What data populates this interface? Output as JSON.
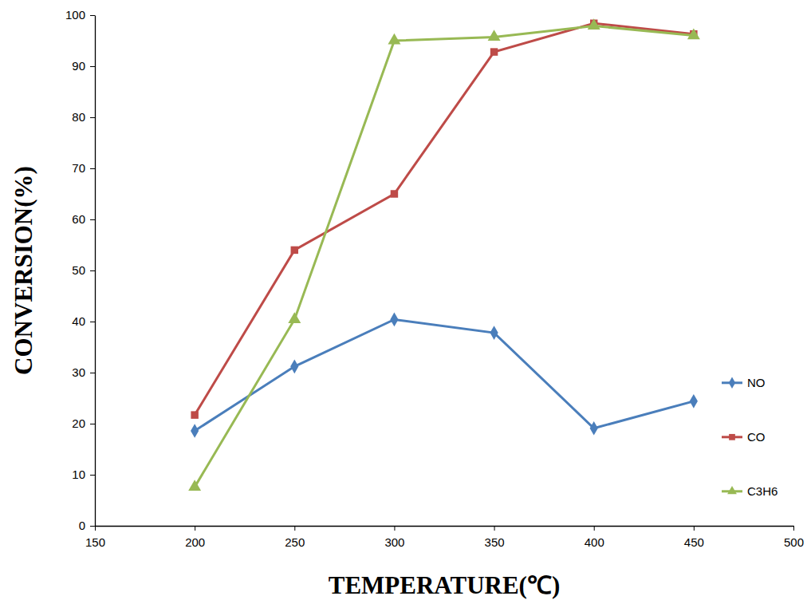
{
  "chart_data": {
    "type": "line",
    "x_label": "TEMPERATURE(℃)",
    "y_label": "CONVERSION(%)",
    "x": [
      200,
      250,
      300,
      350,
      400,
      450
    ],
    "series": [
      {
        "name": "NO",
        "color": "#4a7ebb",
        "marker": "diamond",
        "values": [
          18.6,
          31.2,
          40.4,
          37.8,
          19.1,
          24.4
        ]
      },
      {
        "name": "CO",
        "color": "#be4b48",
        "marker": "square",
        "values": [
          21.7,
          54.0,
          65.0,
          92.8,
          98.4,
          96.3
        ]
      },
      {
        "name": "C3H6",
        "color": "#98b954",
        "marker": "triangle",
        "values": [
          7.6,
          40.4,
          95.0,
          95.7,
          97.9,
          96.0
        ]
      }
    ],
    "xlim": [
      150,
      500
    ],
    "xticks": [
      150,
      200,
      250,
      300,
      350,
      400,
      450,
      500
    ],
    "ylim": [
      0,
      100
    ],
    "yticks": [
      0,
      10,
      20,
      30,
      40,
      50,
      60,
      70,
      80,
      90,
      100
    ],
    "grid": false,
    "legend": "right"
  }
}
